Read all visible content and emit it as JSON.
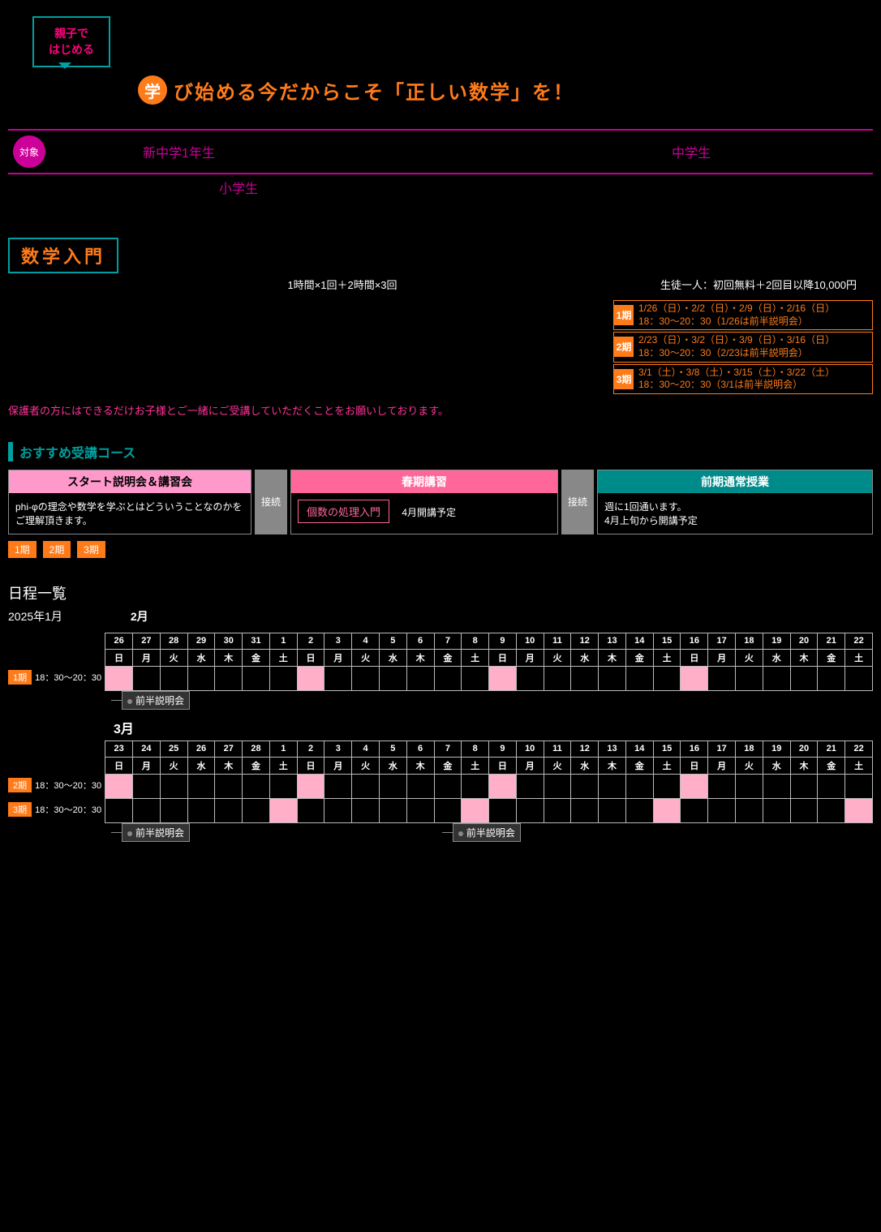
{
  "colors": {
    "teal": "#00a0a0",
    "orange": "#ff7b1a",
    "magenta": "#cc0099",
    "pink": "#ff99cc",
    "pink_strong": "#ff6699",
    "teal_dark": "#008b8b",
    "gray": "#888888",
    "cell_fill": "#ffb0c8",
    "bg": "#000000"
  },
  "bubble": {
    "line1": "親子で",
    "line2": "はじめる"
  },
  "headline": {
    "badge": "学",
    "text": "び始める今だからこそ「正しい数学」を！"
  },
  "target": {
    "label": "対象",
    "item1": "新中学1年生",
    "item2": "中学生",
    "sub": "小学生"
  },
  "section": {
    "tag": "数学入門",
    "meta_center": "1時間×1回＋2時間×3回",
    "meta_right": "生徒一人：初回無料＋2回目以降10,000円"
  },
  "periods": [
    {
      "num": "1期",
      "dates": "1/26（日）・2/2（日）・2/9（日）・2/16（日）",
      "time": "18：30〜20：30（1/26は前半説明会）"
    },
    {
      "num": "2期",
      "dates": "2/23（日）・3/2（日）・3/9（日）・3/16（日）",
      "time": "18：30〜20：30（2/23は前半説明会）"
    },
    {
      "num": "3期",
      "dates": "3/1（土）・3/8（土）・3/15（土）・3/22（土）",
      "time": "18：30〜20：30（3/1は前半説明会）"
    }
  ],
  "guardian_note": "保護者の方にはできるだけお子様とご一緒にご受講していただくことをお願いしております。",
  "flow": {
    "title": "おすすめ受講コース",
    "box1": {
      "hd": "スタート説明会＆講習会",
      "body": "phi-φの理念や数学を学ぶとはどういうことなのかをご理解頂きます。"
    },
    "connect": "接続",
    "box2": {
      "hd": "春期講習",
      "chip": "個数の処理入門",
      "sub": "4月開講予定"
    },
    "box3": {
      "hd": "前期通常授業",
      "body1": "週に1回通います。",
      "body2": "4月上旬から開講予定"
    },
    "chips": [
      "1期",
      "2期",
      "3期"
    ]
  },
  "calendar": {
    "title": "日程一覧",
    "sub": "2025年1月",
    "month2": "2月",
    "month3": "3月",
    "callout_explain": "前半説明会",
    "row1_left_badge": "1期",
    "row1_left_time": "18：30〜20：30",
    "row2_left_badge": "2期",
    "row2_left_time": "18：30〜20：30",
    "row3_left_badge": "3期",
    "row3_left_time": "18：30〜20：30",
    "block1": {
      "days": [
        "26",
        "27",
        "28",
        "29",
        "30",
        "31",
        "1",
        "2",
        "3",
        "4",
        "5",
        "6",
        "7",
        "8",
        "9",
        "10",
        "11",
        "12",
        "13",
        "14",
        "15",
        "16",
        "17",
        "18",
        "19",
        "20",
        "21",
        "22"
      ],
      "wdays": [
        "日",
        "月",
        "火",
        "水",
        "木",
        "金",
        "土",
        "日",
        "月",
        "火",
        "水",
        "木",
        "金",
        "土",
        "日",
        "月",
        "火",
        "水",
        "木",
        "金",
        "土",
        "日",
        "月",
        "火",
        "水",
        "木",
        "金",
        "土"
      ],
      "fill_row1": [
        0,
        7,
        14,
        21
      ],
      "fill_row2": []
    },
    "block2": {
      "days": [
        "23",
        "24",
        "25",
        "26",
        "27",
        "28",
        "1",
        "2",
        "3",
        "4",
        "5",
        "6",
        "7",
        "8",
        "9",
        "10",
        "11",
        "12",
        "13",
        "14",
        "15",
        "16",
        "17",
        "18",
        "19",
        "20",
        "21",
        "22"
      ],
      "wdays": [
        "日",
        "月",
        "火",
        "水",
        "木",
        "金",
        "土",
        "日",
        "月",
        "火",
        "水",
        "木",
        "金",
        "土",
        "日",
        "月",
        "火",
        "水",
        "木",
        "金",
        "土",
        "日",
        "月",
        "火",
        "水",
        "木",
        "金",
        "土"
      ],
      "fill_row1": [
        0,
        7,
        14,
        21
      ],
      "fill_row2": [
        6,
        13,
        20,
        27
      ]
    }
  }
}
